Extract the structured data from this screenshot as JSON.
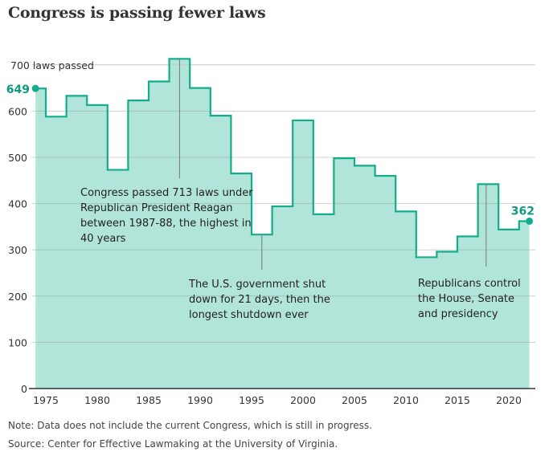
{
  "chart_data": {
    "type": "line",
    "step": true,
    "title": "Congress is passing fewer laws",
    "ylabel_inline": "700 laws passed",
    "x": [
      1974,
      1975,
      1977,
      1979,
      1981,
      1983,
      1985,
      1987,
      1989,
      1991,
      1993,
      1995,
      1997,
      1999,
      2001,
      2003,
      2005,
      2007,
      2009,
      2011,
      2013,
      2015,
      2017,
      2019,
      2021
    ],
    "x_end": 2022,
    "values": [
      649,
      588,
      633,
      613,
      473,
      623,
      664,
      713,
      650,
      590,
      465,
      333,
      394,
      580,
      377,
      498,
      482,
      460,
      383,
      284,
      296,
      329,
      442,
      344,
      362
    ],
    "xlim": [
      1974,
      2022
    ],
    "ylim": [
      0,
      700
    ],
    "xticks": [
      "1975",
      "1980",
      "1985",
      "1990",
      "1995",
      "2000",
      "2005",
      "2010",
      "2015",
      "2020"
    ],
    "yticks": [
      "0",
      "100",
      "200",
      "300",
      "400",
      "500",
      "600"
    ],
    "grid": true,
    "start_label": "649",
    "end_label": "362",
    "annotations": [
      {
        "year": 1988,
        "lines": [
          "Congress passed 713 laws under",
          "Republican President Reagan",
          "between 1987-88, the highest in",
          "40 years"
        ]
      },
      {
        "year": 1996,
        "lines": [
          "The U.S. government shut",
          "down for 21 days, then the",
          "longest shutdown ever"
        ]
      },
      {
        "year": 2017.8,
        "lines": [
          "Republicans control",
          "the House, Senate",
          "and presidency"
        ]
      }
    ],
    "colors": {
      "line": "#14ad8c",
      "fill": "#b2e5d9",
      "grid": "#cfcfcf",
      "axis": "#333333"
    }
  },
  "notes": {
    "note": "Note: Data does not include the current Congress, which is still in progress.",
    "source": "Source: Center for Effective Lawmaking at the University of Virginia."
  }
}
